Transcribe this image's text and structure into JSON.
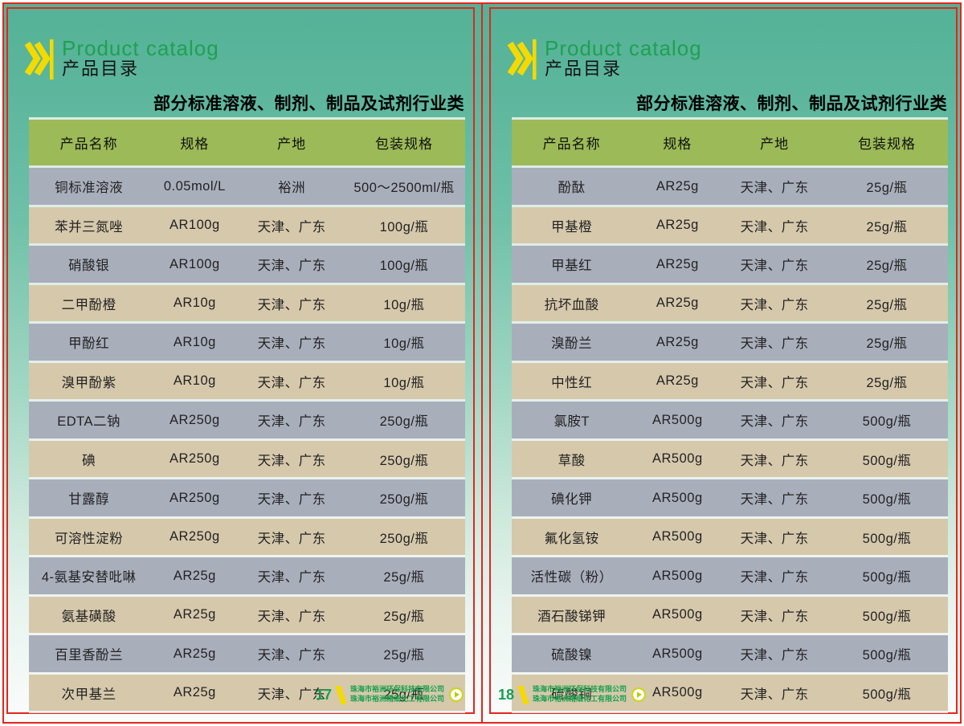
{
  "colors": {
    "border_red": "#e3261d",
    "background_teal_top": "#54b297",
    "background_bottom": "#ffffff",
    "table_header_green": "#9cba57",
    "row_gray": "#a9aebb",
    "row_tan": "#d6c8ab",
    "title_green": "#1fa150",
    "footer_green": "#18a04c",
    "accent_yellow": "#f3da00"
  },
  "icons": {
    "chevrons": "double-chevron-right-icon",
    "slash": "yellow-slash-icon",
    "play": "play-circle-icon"
  },
  "pages": [
    {
      "page_number": "17",
      "title_en": "Product catalog",
      "title_zh": "产品目录",
      "subtitle": "部分标准溶液、制剂、制品及试剂行业类",
      "table": {
        "columns": [
          "产品名称",
          "规格",
          "产地",
          "包装规格"
        ],
        "rows": [
          [
            "铜标准溶液",
            "0.05mol/L",
            "裕洲",
            "500～2500ml/瓶"
          ],
          [
            "苯并三氮唑",
            "AR100g",
            "天津、广东",
            "100g/瓶"
          ],
          [
            "硝酸银",
            "AR100g",
            "天津、广东",
            "100g/瓶"
          ],
          [
            "二甲酚橙",
            "AR10g",
            "天津、广东",
            "10g/瓶"
          ],
          [
            "甲酚红",
            "AR10g",
            "天津、广东",
            "10g/瓶"
          ],
          [
            "溴甲酚紫",
            "AR10g",
            "天津、广东",
            "10g/瓶"
          ],
          [
            "EDTA二钠",
            "AR250g",
            "天津、广东",
            "250g/瓶"
          ],
          [
            "碘",
            "AR250g",
            "天津、广东",
            "250g/瓶"
          ],
          [
            "甘露醇",
            "AR250g",
            "天津、广东",
            "250g/瓶"
          ],
          [
            "可溶性淀粉",
            "AR250g",
            "天津、广东",
            "250g/瓶"
          ],
          [
            "4-氨基安替吡啉",
            "AR25g",
            "天津、广东",
            "25g/瓶"
          ],
          [
            "氨基磺酸",
            "AR25g",
            "天津、广东",
            "25g/瓶"
          ],
          [
            "百里香酚兰",
            "AR25g",
            "天津、广东",
            "25g/瓶"
          ],
          [
            "次甲基兰",
            "AR25g",
            "天津、广东",
            "25g/瓶"
          ]
        ]
      },
      "footer": {
        "company_line1": "珠海市裕洲环保科技有限公司",
        "company_line2": "珠海市裕洲精细化工有限公司"
      }
    },
    {
      "page_number": "18",
      "title_en": "Product catalog",
      "title_zh": "产品目录",
      "subtitle": "部分标准溶液、制剂、制品及试剂行业类",
      "table": {
        "columns": [
          "产品名称",
          "规格",
          "产地",
          "包装规格"
        ],
        "rows": [
          [
            "酚酞",
            "AR25g",
            "天津、广东",
            "25g/瓶"
          ],
          [
            "甲基橙",
            "AR25g",
            "天津、广东",
            "25g/瓶"
          ],
          [
            "甲基红",
            "AR25g",
            "天津、广东",
            "25g/瓶"
          ],
          [
            "抗坏血酸",
            "AR25g",
            "天津、广东",
            "25g/瓶"
          ],
          [
            "溴酚兰",
            "AR25g",
            "天津、广东",
            "25g/瓶"
          ],
          [
            "中性红",
            "AR25g",
            "天津、广东",
            "25g/瓶"
          ],
          [
            "氯胺T",
            "AR500g",
            "天津、广东",
            "500g/瓶"
          ],
          [
            "草酸",
            "AR500g",
            "天津、广东",
            "500g/瓶"
          ],
          [
            "碘化钾",
            "AR500g",
            "天津、广东",
            "500g/瓶"
          ],
          [
            "氟化氢铵",
            "AR500g",
            "天津、广东",
            "500g/瓶"
          ],
          [
            "活性碳（粉）",
            "AR500g",
            "天津、广东",
            "500g/瓶"
          ],
          [
            "酒石酸锑钾",
            "AR500g",
            "天津、广东",
            "500g/瓶"
          ],
          [
            "硫酸镍",
            "AR500g",
            "天津、广东",
            "500g/瓶"
          ],
          [
            "硫酸铜",
            "AR500g",
            "天津、广东",
            "500g/瓶"
          ]
        ]
      },
      "footer": {
        "company_line1": "珠海市裕洲环保科技有限公司",
        "company_line2": "珠海市裕洲精细化工有限公司"
      }
    }
  ]
}
